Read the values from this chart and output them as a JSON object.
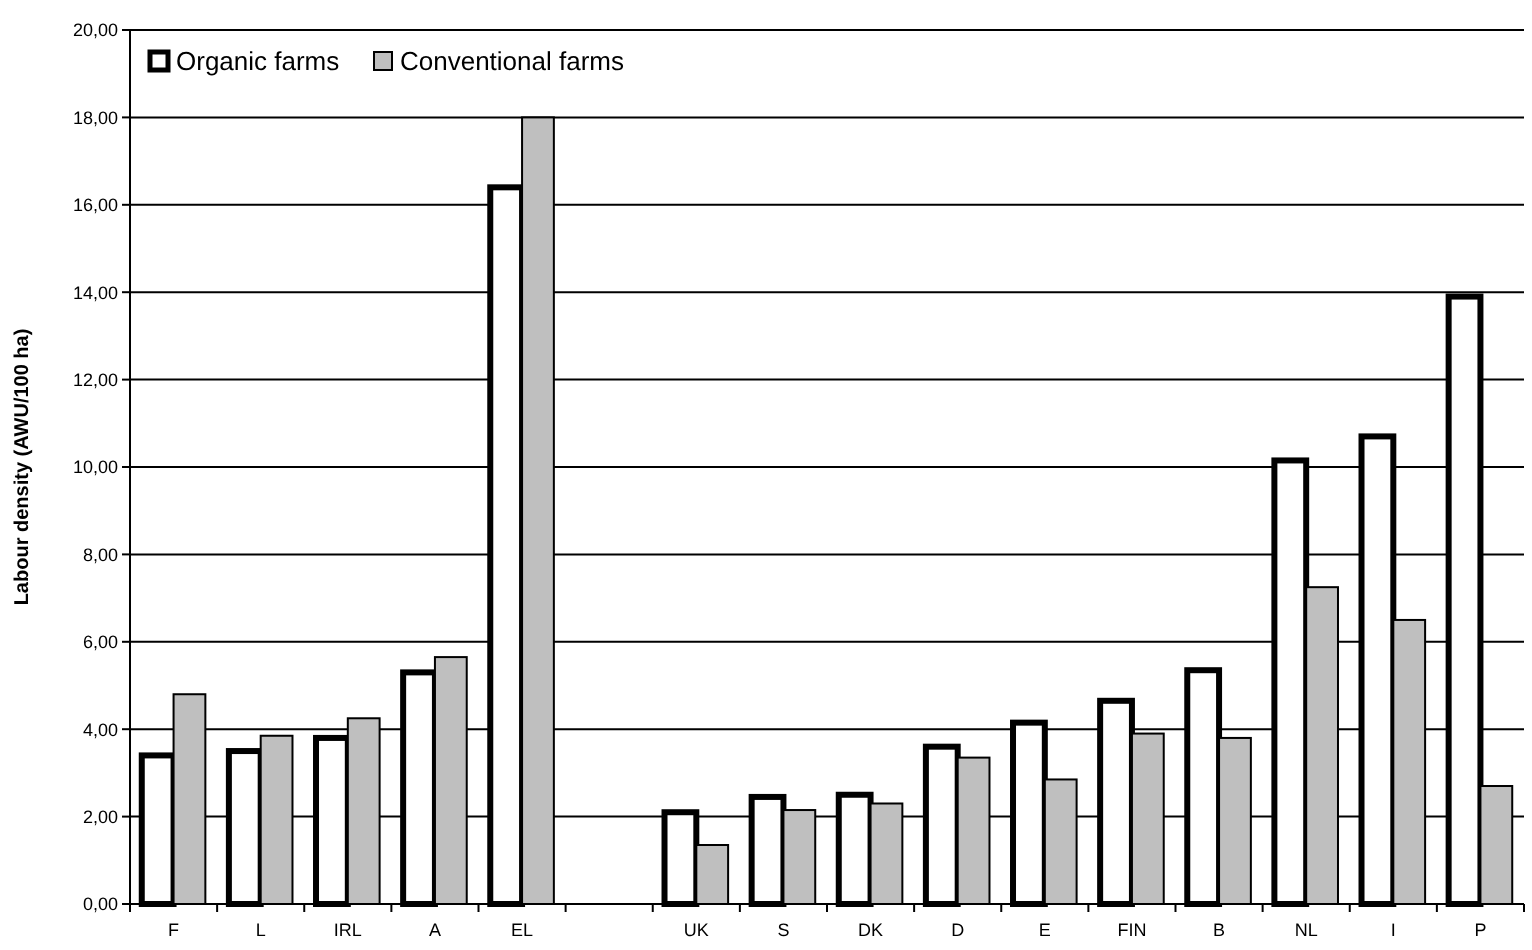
{
  "chart_data": {
    "type": "bar",
    "ylabel": "Labour density (AWU/100 ha)",
    "categories": [
      "F",
      "L",
      "IRL",
      "A",
      "EL",
      null,
      "UK",
      "S",
      "DK",
      "D",
      "E",
      "FIN",
      "B",
      "NL",
      "I",
      "P"
    ],
    "series": [
      {
        "name": "Organic farms",
        "color": "#ffffff",
        "values": [
          3.4,
          3.5,
          3.8,
          5.3,
          16.4,
          null,
          2.1,
          2.45,
          2.5,
          3.6,
          4.15,
          4.65,
          5.35,
          10.15,
          10.7,
          13.9
        ]
      },
      {
        "name": "Conventional farms",
        "color": "#bfbfbf",
        "values": [
          4.8,
          3.85,
          4.25,
          5.65,
          18.0,
          null,
          1.35,
          2.15,
          2.3,
          3.35,
          2.85,
          3.9,
          3.8,
          7.25,
          6.5,
          2.7
        ]
      }
    ],
    "ylim": [
      0,
      20
    ],
    "yticks": [
      {
        "value": 0,
        "label": "0,00"
      },
      {
        "value": 2,
        "label": "2,00"
      },
      {
        "value": 4,
        "label": "4,00"
      },
      {
        "value": 6,
        "label": "6,00"
      },
      {
        "value": 8,
        "label": "8,00"
      },
      {
        "value": 10,
        "label": "10,00"
      },
      {
        "value": 12,
        "label": "12,00"
      },
      {
        "value": 14,
        "label": "14,00"
      },
      {
        "value": 16,
        "label": "16,00"
      },
      {
        "value": 18,
        "label": "18,00"
      },
      {
        "value": 20,
        "label": "20,00"
      }
    ],
    "grid": "y",
    "legend": "top left"
  }
}
